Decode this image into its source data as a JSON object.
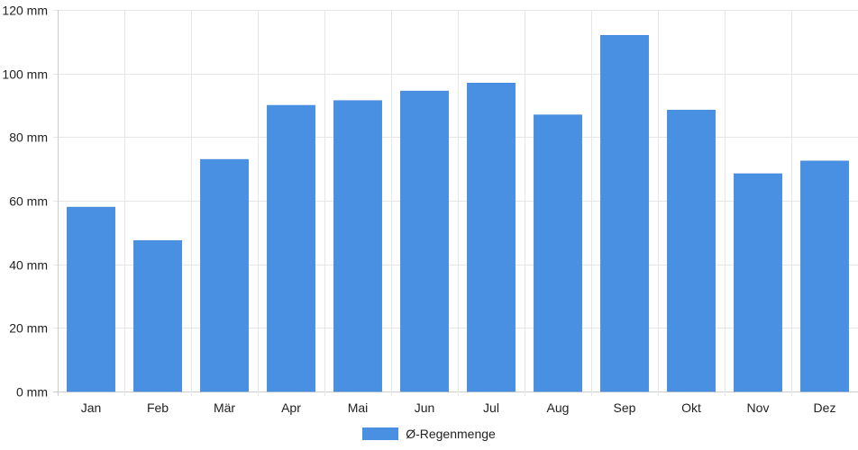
{
  "chart_data": {
    "type": "bar",
    "categories": [
      "Jan",
      "Feb",
      "Mär",
      "Apr",
      "Mai",
      "Jun",
      "Jul",
      "Aug",
      "Sep",
      "Okt",
      "Nov",
      "Dez"
    ],
    "series": [
      {
        "name": "Ø-Regenmenge",
        "values": [
          58,
          47.5,
          73,
          90,
          91.5,
          94.5,
          97,
          87,
          112,
          88.5,
          68.5,
          72.5
        ]
      }
    ],
    "ylim": [
      0,
      120
    ],
    "yticks": [
      0,
      20,
      40,
      60,
      80,
      100,
      120
    ],
    "ytick_labels": [
      "0 mm",
      "20 mm",
      "40 mm",
      "60 mm",
      "80 mm",
      "100 mm",
      "120 mm"
    ],
    "grid": true,
    "legend_position": "bottom-center",
    "colors": {
      "bar": "#4a90e2",
      "grid": "#e6e6e6",
      "axis": "#cccccc"
    },
    "title": "",
    "xlabel": "",
    "ylabel": ""
  },
  "legend": {
    "label": "Ø-Regenmenge",
    "color": "#4a90e2"
  }
}
